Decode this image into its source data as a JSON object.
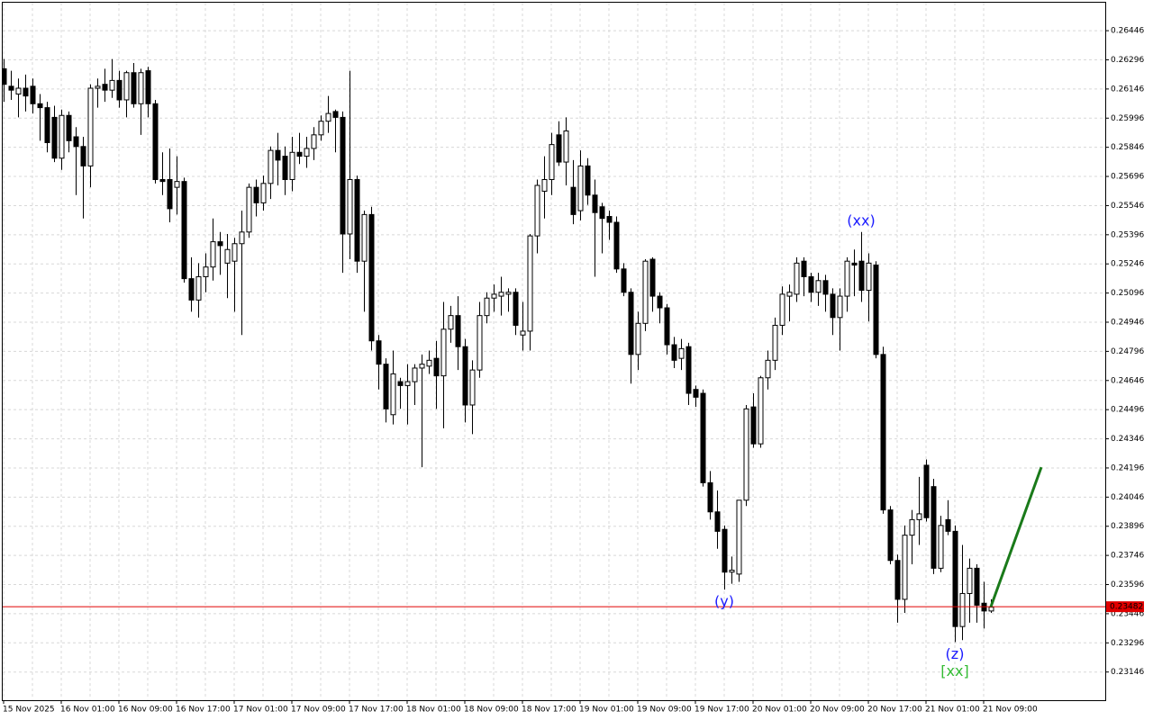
{
  "chart_data": {
    "type": "candlestick",
    "categories": [
      "15 Nov 2025",
      null,
      null,
      null,
      null,
      null,
      null,
      null,
      "16 Nov 01:00",
      null,
      null,
      null,
      null,
      null,
      null,
      null,
      "16 Nov 09:00",
      null,
      null,
      null,
      null,
      null,
      null,
      null,
      "16 Nov 17:00",
      null,
      null,
      null,
      null,
      null,
      null,
      null,
      "17 Nov 01:00",
      null,
      null,
      null,
      null,
      null,
      null,
      null,
      "17 Nov 09:00",
      null,
      null,
      null,
      null,
      null,
      null,
      null,
      "17 Nov 17:00",
      null,
      null,
      null,
      null,
      null,
      null,
      null,
      "18 Nov 01:00",
      null,
      null,
      null,
      null,
      null,
      null,
      null,
      "18 Nov 09:00",
      null,
      null,
      null,
      null,
      null,
      null,
      null,
      "18 Nov 17:00",
      null,
      null,
      null,
      null,
      null,
      null,
      null,
      "19 Nov 01:00",
      null,
      null,
      null,
      null,
      null,
      null,
      null,
      "19 Nov 09:00",
      null,
      null,
      null,
      null,
      null,
      null,
      null,
      "19 Nov 17:00",
      null,
      null,
      null,
      null,
      null,
      null,
      null,
      "20 Nov 01:00",
      null,
      null,
      null,
      null,
      null,
      null,
      null,
      "20 Nov 09:00",
      null,
      null,
      null,
      null,
      null,
      null,
      null,
      "20 Nov 17:00",
      null,
      null,
      null,
      null,
      null,
      null,
      null,
      "21 Nov 01:00",
      null,
      null,
      null,
      null,
      null,
      null,
      null,
      "21 Nov 09:00",
      null
    ],
    "open": [
      0.2625,
      0.2616,
      0.2612,
      0.2615,
      0.2616,
      0.2607,
      0.2605,
      0.26,
      0.2579,
      0.2601,
      0.259,
      0.2585,
      0.2575,
      0.2615,
      0.2617,
      0.2614,
      0.2619,
      0.2609,
      0.2623,
      0.2607,
      0.2624,
      0.2607,
      0.2568,
      0.2568,
      0.2564,
      0.2567,
      0.2517,
      0.2506,
      0.2518,
      0.2523,
      0.2536,
      0.2525,
      0.2526,
      0.2535,
      0.2541,
      0.2564,
      0.2556,
      0.2566,
      0.2583,
      0.258,
      0.2568,
      0.2582,
      0.258,
      0.2584,
      0.2591,
      0.2598,
      0.2603,
      0.26,
      0.254,
      0.2568,
      0.2526,
      0.255,
      0.2485,
      0.2473,
      0.2447,
      0.2464,
      0.2462,
      0.2464,
      0.2471,
      0.2472,
      0.2476,
      0.2467,
      0.2491,
      0.2498,
      0.2482,
      0.2452,
      0.247,
      0.2498,
      0.2507,
      0.2508,
      0.2509,
      0.251,
      0.2488,
      0.249,
      0.2539,
      0.2562,
      0.2568,
      0.2591,
      0.2577,
      0.2564,
      0.2552,
      0.2575,
      0.256,
      0.2554,
      0.2549,
      0.2546,
      0.2522,
      0.251,
      0.2478,
      0.2494,
      0.2527,
      0.2508,
      0.2502,
      0.2483,
      0.2476,
      0.2482,
      0.246,
      0.2458,
      0.2412,
      0.2397,
      0.2388,
      0.2366,
      0.2365,
      0.2403,
      0.2451,
      0.2432,
      0.2466,
      0.2475,
      0.2493,
      0.2508,
      0.2509,
      0.2526,
      0.2518,
      0.251,
      0.2516,
      0.2509,
      0.2497,
      0.2508,
      0.2525,
      0.2526,
      0.2511,
      0.2524,
      0.2478,
      0.2398,
      0.2372,
      0.2352,
      0.2385,
      0.2393,
      0.2421,
      0.241,
      0.2368,
      0.2393,
      0.2387,
      0.2338,
      0.2355,
      0.2368,
      0.235,
      0.2346
    ],
    "high": [
      0.263,
      0.2624,
      0.262,
      0.2622,
      0.262,
      0.2612,
      0.2608,
      0.2606,
      0.2604,
      0.2603,
      0.2595,
      0.259,
      0.2617,
      0.262,
      0.2625,
      0.263,
      0.2624,
      0.2624,
      0.2628,
      0.2625,
      0.2626,
      0.2609,
      0.2582,
      0.2584,
      0.258,
      0.2569,
      0.2528,
      0.2525,
      0.253,
      0.2548,
      0.2541,
      0.254,
      0.2538,
      0.2552,
      0.2566,
      0.2568,
      0.257,
      0.2585,
      0.2592,
      0.2585,
      0.259,
      0.2592,
      0.259,
      0.2595,
      0.2601,
      0.2611,
      0.2604,
      0.2603,
      0.2624,
      0.257,
      0.2552,
      0.2554,
      0.2488,
      0.2476,
      0.248,
      0.2466,
      0.2473,
      0.2473,
      0.2478,
      0.248,
      0.2485,
      0.2505,
      0.2503,
      0.2508,
      0.2486,
      0.2475,
      0.2505,
      0.251,
      0.2514,
      0.2518,
      0.2512,
      0.2512,
      0.2505,
      0.254,
      0.2568,
      0.258,
      0.2592,
      0.2598,
      0.26,
      0.2578,
      0.2583,
      0.2579,
      0.2568,
      0.2556,
      0.2552,
      0.2549,
      0.2525,
      0.2512,
      0.25,
      0.2527,
      0.2528,
      0.251,
      0.2504,
      0.2487,
      0.2486,
      0.2484,
      0.2462,
      0.246,
      0.2418,
      0.2408,
      0.239,
      0.2374,
      0.2403,
      0.2452,
      0.2458,
      0.2467,
      0.248,
      0.2497,
      0.2513,
      0.2514,
      0.2528,
      0.2528,
      0.252,
      0.252,
      0.2519,
      0.2512,
      0.2512,
      0.2528,
      0.2532,
      0.2541,
      0.253,
      0.2526,
      0.2482,
      0.24,
      0.2375,
      0.239,
      0.2398,
      0.2415,
      0.2424,
      0.2414,
      0.2395,
      0.2403,
      0.239,
      0.238,
      0.2373,
      0.237,
      0.2361,
      0.2352
    ],
    "low": [
      0.2608,
      0.2609,
      0.26,
      0.2603,
      0.2602,
      0.2588,
      0.2582,
      0.2577,
      0.2573,
      0.2582,
      0.256,
      0.2548,
      0.2564,
      0.2605,
      0.2608,
      0.261,
      0.2605,
      0.26,
      0.2605,
      0.2591,
      0.26,
      0.2566,
      0.256,
      0.2546,
      0.255,
      0.2515,
      0.25,
      0.2497,
      0.251,
      0.2516,
      0.2519,
      0.2507,
      0.25,
      0.2488,
      0.2538,
      0.2549,
      0.2552,
      0.2558,
      0.2565,
      0.256,
      0.2562,
      0.2576,
      0.2574,
      0.2578,
      0.2588,
      0.2592,
      0.2582,
      0.252,
      0.2527,
      0.252,
      0.25,
      0.248,
      0.246,
      0.2443,
      0.2442,
      0.245,
      0.2442,
      0.2452,
      0.242,
      0.2468,
      0.245,
      0.244,
      0.2484,
      0.247,
      0.2443,
      0.2437,
      0.2466,
      0.2494,
      0.25,
      0.2498,
      0.25,
      0.2488,
      0.248,
      0.248,
      0.253,
      0.2548,
      0.256,
      0.2575,
      0.2565,
      0.2545,
      0.2547,
      0.2555,
      0.2518,
      0.253,
      0.2537,
      0.252,
      0.2508,
      0.2463,
      0.247,
      0.249,
      0.25,
      0.2494,
      0.2478,
      0.2471,
      0.247,
      0.2452,
      0.2451,
      0.241,
      0.2393,
      0.2378,
      0.2357,
      0.236,
      0.2361,
      0.24,
      0.243,
      0.243,
      0.246,
      0.247,
      0.2488,
      0.2495,
      0.2505,
      0.2508,
      0.2505,
      0.2503,
      0.25,
      0.2488,
      0.248,
      0.25,
      0.2508,
      0.2505,
      0.2495,
      0.2476,
      0.2396,
      0.237,
      0.234,
      0.2345,
      0.237,
      0.238,
      0.2392,
      0.2365,
      0.2366,
      0.2385,
      0.233,
      0.2331,
      0.234,
      0.234,
      0.2337,
      0.2345
    ],
    "close": [
      0.2617,
      0.2614,
      0.2615,
      0.2611,
      0.2607,
      0.2605,
      0.2587,
      0.2579,
      0.2601,
      0.2588,
      0.2585,
      0.2575,
      0.2615,
      0.2616,
      0.2614,
      0.2619,
      0.2609,
      0.2623,
      0.2607,
      0.2623,
      0.2607,
      0.2568,
      0.2567,
      0.2553,
      0.2567,
      0.2517,
      0.2506,
      0.2518,
      0.2523,
      0.2536,
      0.2534,
      0.2532,
      0.2535,
      0.2541,
      0.2564,
      0.2556,
      0.2566,
      0.2583,
      0.2578,
      0.2568,
      0.2582,
      0.258,
      0.2584,
      0.2591,
      0.2598,
      0.2602,
      0.26,
      0.254,
      0.2568,
      0.2526,
      0.255,
      0.2485,
      0.2473,
      0.245,
      0.2468,
      0.2462,
      0.2464,
      0.2471,
      0.2473,
      0.2475,
      0.2467,
      0.2491,
      0.2498,
      0.2482,
      0.2452,
      0.247,
      0.2498,
      0.2507,
      0.2509,
      0.251,
      0.251,
      0.2493,
      0.249,
      0.2539,
      0.2565,
      0.2568,
      0.2586,
      0.2577,
      0.2593,
      0.255,
      0.2575,
      0.256,
      0.2551,
      0.2548,
      0.2546,
      0.2522,
      0.251,
      0.2478,
      0.2494,
      0.2526,
      0.2508,
      0.2502,
      0.2483,
      0.2475,
      0.2481,
      0.2458,
      0.2456,
      0.2412,
      0.2397,
      0.2387,
      0.2366,
      0.2367,
      0.2403,
      0.245,
      0.2432,
      0.2466,
      0.2475,
      0.2493,
      0.2509,
      0.251,
      0.2525,
      0.2518,
      0.251,
      0.2516,
      0.2509,
      0.2497,
      0.2508,
      0.2526,
      0.2524,
      0.2511,
      0.2525,
      0.2478,
      0.2398,
      0.2372,
      0.2352,
      0.2385,
      0.2393,
      0.2396,
      0.2394,
      0.2368,
      0.239,
      0.2387,
      0.2338,
      0.2355,
      0.2368,
      0.2349,
      0.2346,
      0.2348
    ],
    "up_color": "#ffffff",
    "down_color": "#000000",
    "ylim": [
      0.23001,
      0.2659
    ],
    "yticks": [
      0.26446,
      0.26296,
      0.26146,
      0.25996,
      0.25846,
      0.25696,
      0.25546,
      0.25396,
      0.25246,
      0.25096,
      0.24946,
      0.24796,
      0.24646,
      0.24496,
      0.24346,
      0.24196,
      0.24046,
      0.23896,
      0.23746,
      0.23596,
      0.23446,
      0.23296,
      0.23146
    ],
    "grid": true,
    "last_price": 0.23482,
    "last_price_color": "#e00000",
    "projection": {
      "x": [
        137,
        144
      ],
      "values": [
        0.23482,
        0.242
      ],
      "color": "#1a7a1a"
    },
    "annotations": [
      {
        "text": "(xx)",
        "index": 119,
        "position": "above",
        "color": "#1a1aff"
      },
      {
        "text": "(y)",
        "index": 100,
        "position": "below",
        "color": "#1a1aff"
      },
      {
        "text": "(z)",
        "index": 132,
        "position": "below",
        "color": "#1a1aff"
      },
      {
        "text": "[xx]",
        "index": 132,
        "position": "below",
        "color": "#33bb33"
      }
    ]
  }
}
